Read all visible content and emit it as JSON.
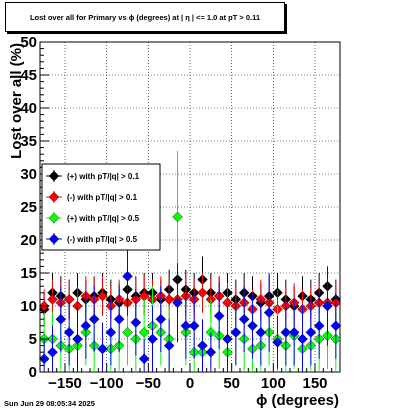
{
  "title": "Lost over all for Primary vs ϕ (degrees) at |  η | <= 1.0 at pT > 0.11",
  "footer": "Sun Jun 29 08:05:34 2025",
  "chart_data": {
    "type": "scatter",
    "xlabel": "ϕ (degrees)",
    "ylabel": "Lost over all (%)",
    "xlim": [
      -180,
      180
    ],
    "ylim": [
      0,
      50
    ],
    "x_ticks": [
      -150,
      -100,
      -50,
      0,
      50,
      100,
      150
    ],
    "y_ticks": [
      0,
      5,
      10,
      15,
      20,
      25,
      30,
      35,
      40,
      45,
      50
    ],
    "grid": true,
    "legend_position": "middle-left",
    "series": [
      {
        "name": "(+) with pT/|q| > 0.1",
        "color": "#000000",
        "x": [
          -175,
          -165,
          -155,
          -145,
          -135,
          -125,
          -115,
          -105,
          -95,
          -85,
          -75,
          -65,
          -55,
          -45,
          -35,
          -25,
          -15,
          -5,
          5,
          15,
          25,
          35,
          45,
          55,
          65,
          75,
          85,
          95,
          105,
          115,
          125,
          135,
          145,
          155,
          165,
          175
        ],
        "y": [
          9.5,
          12,
          11.5,
          11,
          12,
          11,
          11.5,
          12,
          11,
          10.5,
          12.5,
          11.5,
          12,
          12,
          11,
          12.5,
          14,
          12.5,
          12,
          14,
          12,
          11.5,
          12,
          11,
          12,
          11.5,
          10.5,
          11.5,
          12,
          11,
          10,
          11.5,
          11,
          12,
          13,
          11
        ],
        "err": [
          2.5,
          3,
          3,
          3,
          3,
          3,
          3,
          3,
          3,
          3,
          3,
          3,
          3,
          3,
          3,
          3,
          3.5,
          3,
          3,
          3.5,
          3,
          3,
          3,
          3,
          3,
          3,
          3,
          3,
          3,
          3,
          3,
          3,
          3,
          3,
          3,
          3
        ]
      },
      {
        "name": "(-) with pT/|q| > 0.1",
        "color": "#ff0000",
        "x": [
          -175,
          -165,
          -155,
          -145,
          -135,
          -125,
          -115,
          -105,
          -95,
          -85,
          -75,
          -65,
          -55,
          -45,
          -35,
          -25,
          -15,
          -5,
          5,
          15,
          25,
          35,
          45,
          55,
          65,
          75,
          85,
          95,
          105,
          115,
          125,
          135,
          145,
          155,
          165,
          175
        ],
        "y": [
          10,
          11,
          10.5,
          11,
          10,
          11.5,
          11,
          11.5,
          10,
          11,
          10.5,
          11,
          11.5,
          11,
          11.5,
          11,
          11,
          11.5,
          11,
          12,
          11,
          11.5,
          10.5,
          10,
          10.5,
          9.5,
          11,
          10.5,
          9.5,
          10,
          10.5,
          9.5,
          10,
          10.5,
          10.5,
          10.5
        ],
        "err": [
          2.5,
          3,
          3,
          3,
          3,
          3,
          3,
          3,
          3,
          3,
          3,
          3,
          3,
          3,
          3,
          3,
          3,
          3,
          3,
          3,
          3,
          3,
          3,
          3,
          3,
          3,
          3,
          3,
          3,
          3,
          3,
          3,
          3,
          3,
          3,
          3
        ]
      },
      {
        "name": "(+) with pT/|q| > 0.5",
        "color": "#00ff00",
        "x": [
          -175,
          -165,
          -155,
          -145,
          -135,
          -125,
          -115,
          -105,
          -95,
          -85,
          -75,
          -65,
          -55,
          -45,
          -35,
          -25,
          -15,
          -5,
          5,
          15,
          25,
          35,
          45,
          55,
          65,
          75,
          85,
          95,
          105,
          115,
          125,
          135,
          145,
          155,
          165,
          175
        ],
        "y": [
          5,
          5,
          4,
          3.5,
          4,
          6,
          4,
          3.5,
          3.5,
          4,
          6,
          5,
          6,
          7,
          6,
          5,
          23.5,
          6,
          3,
          3,
          6,
          5.5,
          3,
          6,
          5,
          3.5,
          4,
          6,
          5,
          4,
          5.5,
          3.5,
          4,
          5,
          5.5,
          5
        ],
        "err": [
          4,
          4,
          4,
          3.5,
          4,
          5,
          4,
          4,
          4,
          4,
          5,
          5,
          5,
          6,
          5,
          5,
          10,
          5,
          3,
          3,
          5,
          5,
          3,
          5,
          5,
          4,
          4,
          5,
          5,
          4,
          5,
          4,
          4,
          5,
          5,
          5
        ]
      },
      {
        "name": "(-) with pT/|q| > 0.5",
        "color": "#0000ff",
        "x": [
          -175,
          -165,
          -155,
          -145,
          -135,
          -125,
          -115,
          -105,
          -95,
          -85,
          -75,
          -65,
          -55,
          -45,
          -35,
          -25,
          -15,
          -5,
          5,
          15,
          25,
          35,
          45,
          55,
          65,
          75,
          85,
          95,
          105,
          115,
          125,
          135,
          145,
          155,
          165,
          175
        ],
        "y": [
          2,
          3,
          8,
          6,
          5,
          7,
          8,
          3.5,
          6,
          8,
          14.5,
          7.5,
          2,
          5,
          8,
          4,
          10.5,
          7,
          7,
          4,
          3,
          8.5,
          5,
          6,
          8,
          7,
          6,
          9,
          4.5,
          6,
          6,
          5,
          6,
          7,
          10,
          7
        ],
        "err": [
          3,
          4,
          5,
          5,
          5,
          5,
          5,
          4,
          5,
          5,
          6,
          5,
          3,
          5,
          5,
          4,
          6,
          5,
          5,
          4,
          3,
          5,
          5,
          5,
          5,
          5,
          5,
          6,
          4,
          5,
          5,
          5,
          5,
          5,
          6,
          5
        ]
      }
    ]
  }
}
